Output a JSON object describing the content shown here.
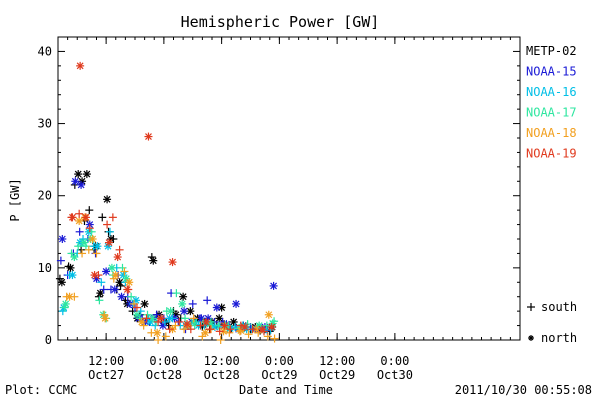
{
  "colors": {
    "METP-02": "#000000",
    "NOAA-15": "#1a1ad6",
    "NOAA-16": "#00bfe6",
    "NOAA-17": "#2ee6a0",
    "NOAA-18": "#f2a020",
    "NOAA-19": "#e03a1e",
    "axis": "#000000",
    "background": "#ffffff"
  },
  "chart_data": {
    "type": "scatter",
    "title": "Hemispheric Power [GW]",
    "xlabel": "Date and Time",
    "ylabel": "P [GW]",
    "footer_left": "Plot: CCMC",
    "footer_right": "2011/10/30 00:55:08",
    "x_unit": "hours since 2011-10-26 00:00",
    "xlim": [
      2,
      98
    ],
    "ylim": [
      0,
      42
    ],
    "grid": false,
    "legend_position": "right",
    "yticks": [
      0,
      10,
      20,
      30,
      40
    ],
    "xticks": [
      {
        "x": 12,
        "label": "12:00",
        "date": "Oct27"
      },
      {
        "x": 24,
        "label": "0:00",
        "date": "Oct28"
      },
      {
        "x": 36,
        "label": "12:00",
        "date": "Oct28"
      },
      {
        "x": 48,
        "label": "0:00",
        "date": "Oct29"
      },
      {
        "x": 60,
        "label": "12:00",
        "date": "Oct29"
      },
      {
        "x": 72,
        "label": "0:00",
        "date": "Oct30"
      }
    ],
    "marker_legend": [
      {
        "symbol": "+",
        "label": "south"
      },
      {
        "symbol": "*",
        "label": "north"
      }
    ],
    "series": [
      {
        "name": "METP-02",
        "south": [
          [
            2.4,
            8.5
          ],
          [
            4.2,
            10.2
          ],
          [
            5.5,
            21.5
          ],
          [
            6.8,
            12.5
          ],
          [
            7.5,
            16.5
          ],
          [
            8.5,
            18
          ],
          [
            9.5,
            12.5
          ],
          [
            10.5,
            6
          ],
          [
            11.2,
            17
          ],
          [
            12.5,
            15
          ],
          [
            13.5,
            14
          ],
          [
            14.2,
            7
          ],
          [
            15,
            7.5
          ],
          [
            16,
            5.5
          ],
          [
            17.5,
            4
          ],
          [
            19,
            3.5
          ],
          [
            20.5,
            3
          ],
          [
            21.5,
            11.5
          ],
          [
            22.5,
            3.5
          ],
          [
            23.5,
            2.5
          ],
          [
            25,
            2
          ],
          [
            26,
            4
          ],
          [
            27.5,
            3
          ],
          [
            29,
            2
          ],
          [
            30.5,
            2.5
          ],
          [
            32,
            1.8
          ],
          [
            33.5,
            1.5
          ],
          [
            35,
            2
          ],
          [
            36.5,
            2.2
          ],
          [
            38,
            1.6
          ],
          [
            40,
            1.4
          ],
          [
            42,
            1.5
          ],
          [
            44,
            1.3
          ],
          [
            46,
            1.2
          ]
        ],
        "north": [
          [
            2.8,
            8
          ],
          [
            4.6,
            10
          ],
          [
            6.2,
            23
          ],
          [
            7,
            22
          ],
          [
            8,
            23
          ],
          [
            9.8,
            13
          ],
          [
            10.8,
            6.5
          ],
          [
            12.2,
            19.5
          ],
          [
            13,
            14
          ],
          [
            14.8,
            8
          ],
          [
            16.4,
            5
          ],
          [
            18.5,
            3
          ],
          [
            20,
            5
          ],
          [
            21.8,
            11
          ],
          [
            23,
            3.5
          ],
          [
            24.5,
            2.5
          ],
          [
            26.5,
            3.5
          ],
          [
            28,
            6
          ],
          [
            29.5,
            4
          ],
          [
            31,
            3
          ],
          [
            32.5,
            2.5
          ],
          [
            34,
            2.5
          ],
          [
            35.5,
            3
          ],
          [
            36,
            4.5
          ],
          [
            38.5,
            2.5
          ],
          [
            40.5,
            2
          ],
          [
            43,
            1.8
          ],
          [
            45,
            1.5
          ],
          [
            46.5,
            1.8
          ]
        ]
      },
      {
        "name": "NOAA-15",
        "south": [
          [
            2.6,
            11
          ],
          [
            4,
            9
          ],
          [
            5.2,
            12
          ],
          [
            6.5,
            15
          ],
          [
            8.2,
            14
          ],
          [
            9.8,
            12
          ],
          [
            11.5,
            7
          ],
          [
            13,
            7
          ],
          [
            14.5,
            9
          ],
          [
            16.5,
            6
          ],
          [
            18,
            4.5
          ],
          [
            19.5,
            3
          ],
          [
            21,
            2.5
          ],
          [
            22.5,
            3.5
          ],
          [
            24,
            3
          ],
          [
            25.5,
            6.5
          ],
          [
            27,
            2.5
          ],
          [
            28.5,
            1.5
          ],
          [
            30,
            5
          ],
          [
            31.5,
            3
          ],
          [
            33,
            5.5
          ],
          [
            34.5,
            2.5
          ],
          [
            36.2,
            2.5
          ],
          [
            37.5,
            2
          ],
          [
            39,
            1.6
          ],
          [
            40.5,
            2
          ],
          [
            42,
            1.8
          ],
          [
            44,
            1.5
          ],
          [
            45.5,
            1.3
          ]
        ],
        "north": [
          [
            2.9,
            14
          ],
          [
            5.6,
            22
          ],
          [
            6.8,
            21.5
          ],
          [
            8.6,
            16
          ],
          [
            10,
            8.5
          ],
          [
            12,
            9.5
          ],
          [
            13.8,
            7
          ],
          [
            15.2,
            6
          ],
          [
            17,
            5
          ],
          [
            18.8,
            3
          ],
          [
            20.2,
            2.5
          ],
          [
            22,
            3
          ],
          [
            23.8,
            2
          ],
          [
            26.2,
            3
          ],
          [
            28.2,
            4
          ],
          [
            29.8,
            2.5
          ],
          [
            31.8,
            3
          ],
          [
            33.2,
            3
          ],
          [
            35,
            4.5
          ],
          [
            37,
            2.2
          ],
          [
            39,
            5
          ],
          [
            41,
            1.8
          ],
          [
            43,
            1.5
          ],
          [
            45,
            1.8
          ],
          [
            46.8,
            7.5
          ]
        ]
      },
      {
        "name": "NOAA-16",
        "south": [
          [
            3,
            4
          ],
          [
            4.4,
            9
          ],
          [
            6,
            12
          ],
          [
            7.2,
            14
          ],
          [
            9.4,
            13
          ],
          [
            11,
            8
          ],
          [
            12.8,
            15
          ],
          [
            14.2,
            10
          ],
          [
            16,
            8
          ],
          [
            17.6,
            5
          ],
          [
            19.2,
            4
          ],
          [
            20.8,
            3
          ],
          [
            22.2,
            2
          ],
          [
            24.2,
            2.5
          ],
          [
            25.8,
            3
          ],
          [
            27.4,
            2
          ],
          [
            29.2,
            2
          ],
          [
            30.8,
            2.5
          ],
          [
            32.4,
            2
          ],
          [
            34,
            2
          ],
          [
            35.6,
            1.8
          ],
          [
            37.2,
            1.5
          ],
          [
            38.8,
            1.8
          ],
          [
            40.4,
            2
          ],
          [
            42.2,
            1.5
          ],
          [
            44.2,
            1.6
          ],
          [
            46.2,
            1.4
          ]
        ],
        "north": [
          [
            3.2,
            4.5
          ],
          [
            5,
            9
          ],
          [
            6.6,
            13.5
          ],
          [
            8.4,
            15
          ],
          [
            10.2,
            13
          ],
          [
            12.4,
            13
          ],
          [
            15.6,
            9
          ],
          [
            18.2,
            5.5
          ],
          [
            21.2,
            2.5
          ],
          [
            25.2,
            3
          ],
          [
            28.6,
            2
          ],
          [
            31.2,
            2
          ],
          [
            34.6,
            1.8
          ],
          [
            37.8,
            1.6
          ],
          [
            41.2,
            1.5
          ],
          [
            44.8,
            1.4
          ]
        ]
      },
      {
        "name": "NOAA-17",
        "south": [
          [
            3.4,
            4.5
          ],
          [
            4.8,
            12
          ],
          [
            6.2,
            13
          ],
          [
            7.8,
            13
          ],
          [
            9,
            15
          ],
          [
            10.6,
            5.5
          ],
          [
            12,
            3
          ],
          [
            13.4,
            9
          ],
          [
            15.4,
            10
          ],
          [
            17.2,
            6
          ],
          [
            19,
            3
          ],
          [
            20.6,
            3.5
          ],
          [
            22.4,
            2.5
          ],
          [
            24.6,
            4
          ],
          [
            26.6,
            6.5
          ],
          [
            28.4,
            3
          ],
          [
            30.4,
            2
          ],
          [
            32.2,
            2.5
          ],
          [
            33.8,
            2.5
          ],
          [
            35.4,
            2
          ],
          [
            37.4,
            2
          ],
          [
            39.4,
            1.6
          ],
          [
            41.4,
            2.2
          ],
          [
            43.4,
            1.8
          ],
          [
            45.4,
            2
          ],
          [
            46.9,
            2.6
          ]
        ],
        "north": [
          [
            3.6,
            5
          ],
          [
            5.4,
            11.5
          ],
          [
            7.4,
            13.5
          ],
          [
            8.8,
            14
          ],
          [
            11.4,
            3.5
          ],
          [
            13.2,
            10
          ],
          [
            16.2,
            8.5
          ],
          [
            18.4,
            3.5
          ],
          [
            21.6,
            3
          ],
          [
            25.4,
            4
          ],
          [
            27.8,
            5
          ],
          [
            30.2,
            2.5
          ],
          [
            33.6,
            2.2
          ],
          [
            36.8,
            2
          ],
          [
            40.2,
            1.8
          ],
          [
            43.8,
            2
          ],
          [
            46.6,
            2.3
          ]
        ]
      },
      {
        "name": "NOAA-18",
        "south": [
          [
            3.8,
            6
          ],
          [
            5.4,
            6
          ],
          [
            7,
            12
          ],
          [
            8.4,
            12.5
          ],
          [
            10,
            12
          ],
          [
            11.6,
            3.5
          ],
          [
            13.6,
            8.5
          ],
          [
            15.8,
            9.5
          ],
          [
            17.8,
            5
          ],
          [
            19.8,
            2
          ],
          [
            21.4,
            1
          ],
          [
            22.8,
            0
          ],
          [
            24.4,
            0.5
          ],
          [
            26.4,
            2
          ],
          [
            28.2,
            1.5
          ],
          [
            30.2,
            3
          ],
          [
            32,
            0.5
          ],
          [
            33.8,
            1.5
          ],
          [
            35.8,
            0
          ],
          [
            37.6,
            1
          ],
          [
            39.8,
            1.2
          ],
          [
            41.6,
            0.8
          ],
          [
            43.6,
            1
          ],
          [
            45.6,
            0.5
          ],
          [
            47,
            0.2
          ]
        ],
        "north": [
          [
            4.4,
            6
          ],
          [
            6.4,
            16.5
          ],
          [
            7.6,
            17
          ],
          [
            9.2,
            14
          ],
          [
            11.8,
            3
          ],
          [
            14,
            9
          ],
          [
            16.8,
            8
          ],
          [
            19.4,
            2.5
          ],
          [
            22.6,
            1
          ],
          [
            25.8,
            1.5
          ],
          [
            29,
            2
          ],
          [
            32.6,
            1
          ],
          [
            36.4,
            1.2
          ],
          [
            40,
            1.3
          ],
          [
            43.2,
            1.5
          ],
          [
            45.8,
            3.5
          ]
        ]
      },
      {
        "name": "NOAA-19",
        "south": [
          [
            4.8,
            17
          ],
          [
            6.4,
            17.5
          ],
          [
            8.6,
            15.5
          ],
          [
            10.4,
            9
          ],
          [
            12.2,
            16
          ],
          [
            13.4,
            17
          ],
          [
            14.8,
            12.5
          ],
          [
            16.6,
            7
          ],
          [
            18.4,
            4.5
          ],
          [
            20.4,
            3
          ],
          [
            22.8,
            2.5
          ],
          [
            25.2,
            1.5
          ],
          [
            27.2,
            2.5
          ],
          [
            29.6,
            1.5
          ],
          [
            31.6,
            2
          ],
          [
            33.6,
            1.5
          ],
          [
            35.6,
            1.2
          ],
          [
            37.8,
            1.5
          ],
          [
            40,
            2
          ],
          [
            42.4,
            1.5
          ],
          [
            44.8,
            1.2
          ]
        ],
        "north": [
          [
            5,
            17
          ],
          [
            6.6,
            38
          ],
          [
            7.8,
            17
          ],
          [
            9.6,
            9
          ],
          [
            12.6,
            13.5
          ],
          [
            14.4,
            11.5
          ],
          [
            16.4,
            7
          ],
          [
            20.8,
            28.2
          ],
          [
            23.4,
            3
          ],
          [
            25.8,
            10.8
          ],
          [
            28.8,
            2.2
          ],
          [
            32.8,
            2.5
          ],
          [
            36.6,
            2
          ],
          [
            40.8,
            1.8
          ],
          [
            44.4,
            1.5
          ],
          [
            46.4,
            1.8
          ]
        ]
      }
    ]
  }
}
